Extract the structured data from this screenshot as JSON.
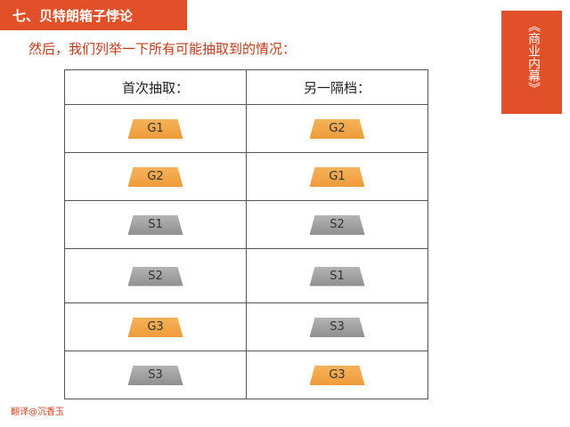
{
  "header": {
    "title": "七、贝特朗箱子悖论"
  },
  "subtitle": "然后，我们列举一下所有可能抽取到的情况：",
  "side_tab": {
    "label": "《商业内幕》"
  },
  "table": {
    "headers": [
      "首次抽取：",
      "另一隔档："
    ],
    "rows": [
      {
        "first": "G1",
        "first_color": "gold",
        "other": "G2",
        "other_color": "gold"
      },
      {
        "first": "G2",
        "first_color": "gold",
        "other": "G1",
        "other_color": "gold"
      },
      {
        "first": "S1",
        "first_color": "silver",
        "other": "S2",
        "other_color": "silver"
      },
      {
        "first": "S2",
        "first_color": "silver",
        "other": "S1",
        "other_color": "silver"
      },
      {
        "first": "G3",
        "first_color": "gold",
        "other": "S3",
        "other_color": "silver"
      },
      {
        "first": "S3",
        "first_color": "silver",
        "other": "G3",
        "other_color": "gold"
      }
    ]
  },
  "colors": {
    "accent": "#e2502a",
    "gold_card": "#f2a545",
    "silver_card": "#9c9c9c"
  },
  "credit": "翻译@沉香玉"
}
